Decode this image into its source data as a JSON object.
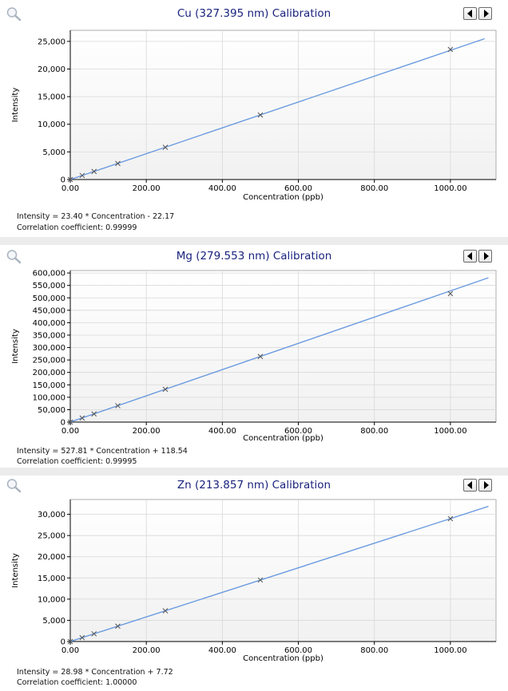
{
  "charts": [
    {
      "title": "Cu (327.395 nm) Calibration",
      "equation": "Intensity = 23.40 * Concentration - 22.17",
      "correlation": "Correlation coefficient: 0.99999"
    },
    {
      "title": "Mg (279.553 nm) Calibration",
      "equation": "Intensity = 527.81 * Concentration + 118.54",
      "correlation": "Correlation coefficient: 0.99995"
    },
    {
      "title": "Zn (213.857 nm) Calibration",
      "equation": "Intensity = 28.98 * Concentration + 7.72",
      "correlation": "Correlation coefficient: 1.00000"
    }
  ],
  "colors": {
    "line": "#6b9be0",
    "title": "#1a237e",
    "grid": "#d8d8d8",
    "axis": "#000000"
  },
  "icons": {
    "zoom": "magnifier-icon",
    "prev": "arrow-left-icon",
    "next": "arrow-right-icon"
  },
  "chart_data": [
    {
      "type": "scatter",
      "title": "Cu (327.395 nm) Calibration",
      "xlabel": "Concentration (ppb)",
      "ylabel": "Intensity",
      "xlim": [
        0,
        1120
      ],
      "ylim": [
        0,
        27000
      ],
      "x_ticks": [
        "0.00",
        "200.00",
        "400.00",
        "600.00",
        "800.00",
        "1000.00"
      ],
      "y_ticks": [
        "0",
        "5,000",
        "10,000",
        "15,000",
        "20,000",
        "25,000"
      ],
      "fit": {
        "slope": 23.4,
        "intercept": -22.17,
        "x_range": [
          0,
          1090
        ]
      },
      "points": [
        {
          "x": 0,
          "y": 0
        },
        {
          "x": 31.25,
          "y": 730
        },
        {
          "x": 62.5,
          "y": 1460
        },
        {
          "x": 125,
          "y": 2900
        },
        {
          "x": 250,
          "y": 5830
        },
        {
          "x": 500,
          "y": 11680
        },
        {
          "x": 1000,
          "y": 23540
        }
      ],
      "grid": true
    },
    {
      "type": "scatter",
      "title": "Mg (279.553 nm) Calibration",
      "xlabel": "Concentration (ppb)",
      "ylabel": "Intensity",
      "xlim": [
        0,
        1120
      ],
      "ylim": [
        0,
        610000
      ],
      "x_ticks": [
        "0.00",
        "200.00",
        "400.00",
        "600.00",
        "800.00",
        "1000.00"
      ],
      "y_ticks": [
        "0",
        "50,000",
        "100,000",
        "150,000",
        "200,000",
        "250,000",
        "300,000",
        "350,000",
        "400,000",
        "450,000",
        "500,000",
        "550,000",
        "600,000"
      ],
      "fit": {
        "slope": 527.81,
        "intercept": 118.54,
        "x_range": [
          0,
          1100
        ]
      },
      "points": [
        {
          "x": 0,
          "y": 0
        },
        {
          "x": 31.25,
          "y": 16500
        },
        {
          "x": 62.5,
          "y": 33000
        },
        {
          "x": 125,
          "y": 66000
        },
        {
          "x": 250,
          "y": 132000
        },
        {
          "x": 500,
          "y": 264000
        },
        {
          "x": 1000,
          "y": 517000
        }
      ],
      "grid": true
    },
    {
      "type": "scatter",
      "title": "Zn (213.857 nm) Calibration",
      "xlabel": "Concentration (ppb)",
      "ylabel": "Intensity",
      "xlim": [
        0,
        1120
      ],
      "ylim": [
        0,
        33500
      ],
      "x_ticks": [
        "0.00",
        "200.00",
        "400.00",
        "600.00",
        "800.00",
        "1000.00"
      ],
      "y_ticks": [
        "0",
        "5,000",
        "10,000",
        "15,000",
        "20,000",
        "25,000",
        "30,000"
      ],
      "fit": {
        "slope": 28.98,
        "intercept": 7.72,
        "x_range": [
          0,
          1100
        ]
      },
      "points": [
        {
          "x": 0,
          "y": 0
        },
        {
          "x": 31.25,
          "y": 910
        },
        {
          "x": 62.5,
          "y": 1820
        },
        {
          "x": 125,
          "y": 3630
        },
        {
          "x": 250,
          "y": 7250
        },
        {
          "x": 500,
          "y": 14500
        },
        {
          "x": 1000,
          "y": 28990
        }
      ],
      "grid": true
    }
  ]
}
